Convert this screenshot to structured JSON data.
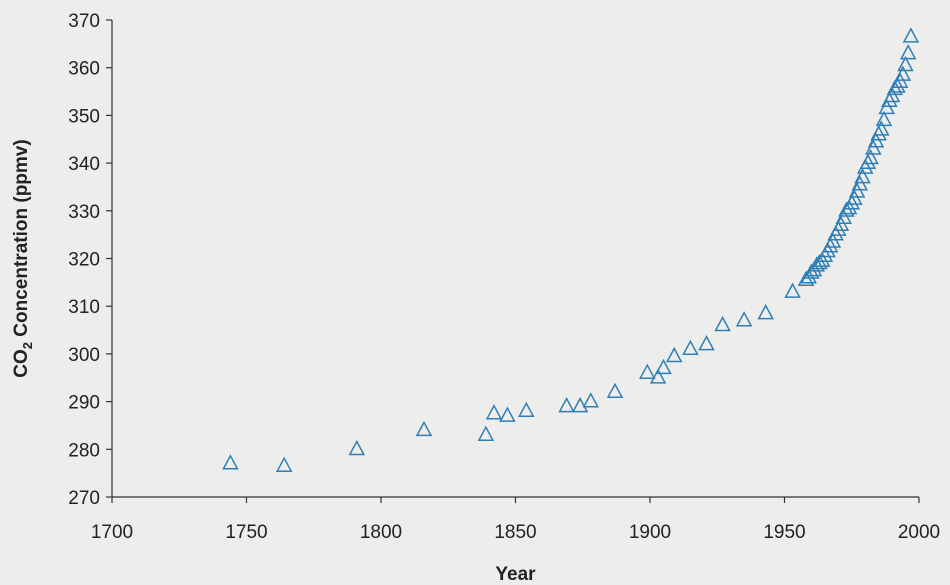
{
  "chart_data": {
    "type": "scatter",
    "title": "",
    "xlabel": "Year",
    "ylabel": "CO2 Concentration (ppmv)",
    "ylabel_parts": [
      "CO",
      "2",
      " Concentration (ppmv)"
    ],
    "xlim": [
      1700,
      2000
    ],
    "ylim": [
      270,
      370
    ],
    "xticks": [
      1700,
      1750,
      1800,
      1850,
      1900,
      1950,
      2000
    ],
    "yticks": [
      270,
      280,
      290,
      300,
      310,
      320,
      330,
      340,
      350,
      360,
      370
    ],
    "grid": false,
    "legend": "none",
    "marker": "open-triangle",
    "marker_color": "#2f7fb5",
    "series": [
      {
        "x": [
          1744,
          1764,
          1791,
          1816,
          1839,
          1842,
          1847,
          1854,
          1869,
          1874,
          1878,
          1887,
          1899,
          1903,
          1905,
          1909,
          1915,
          1921,
          1927,
          1935,
          1943,
          1953,
          1958,
          1959,
          1960,
          1961,
          1962,
          1963,
          1964,
          1965,
          1966,
          1967,
          1968,
          1969,
          1970,
          1971,
          1972,
          1973,
          1974,
          1975,
          1976,
          1977,
          1978,
          1979,
          1980,
          1981,
          1982,
          1983,
          1984,
          1985,
          1986,
          1987,
          1988,
          1989,
          1990,
          1991,
          1992,
          1993,
          1994,
          1995,
          1996,
          1997
        ],
        "y": [
          277,
          276.5,
          280,
          284,
          283,
          287.5,
          287,
          288,
          289,
          289,
          290,
          292,
          296,
          295,
          297,
          299.5,
          301,
          302,
          306,
          307,
          308.5,
          313,
          315.5,
          316,
          317,
          317.5,
          318.5,
          319,
          319.5,
          320.5,
          321.5,
          322.5,
          323.5,
          325,
          326,
          327,
          328.5,
          330,
          330.5,
          331.5,
          332.5,
          334,
          335.5,
          337,
          339,
          340,
          341,
          343,
          344.5,
          346,
          347,
          349,
          351.5,
          353,
          354,
          355.5,
          356,
          357,
          358.5,
          360.5,
          363,
          366.5
        ]
      }
    ]
  }
}
